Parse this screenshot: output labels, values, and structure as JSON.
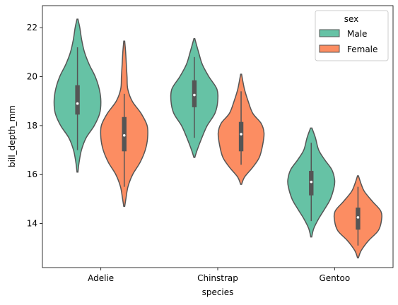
{
  "chart_data": {
    "type": "violin",
    "title": "",
    "xlabel": "species",
    "ylabel": "bill_depth_mm",
    "categories": [
      "Adelie",
      "Chinstrap",
      "Gentoo"
    ],
    "ylim": [
      12.2,
      22.9
    ],
    "yticks": [
      14,
      16,
      18,
      20,
      22
    ],
    "ytick_labels": [
      "14",
      "16",
      "18",
      "20",
      "22"
    ],
    "legend": {
      "title": "sex",
      "placement": "top-right"
    },
    "series": [
      {
        "name": "Male",
        "color": "#66c2a5",
        "violins": [
          {
            "category": "Adelie",
            "q1": 18.45,
            "median": 18.9,
            "q3": 19.65,
            "whisker_low": 17.0,
            "whisker_high": 21.2,
            "profile": [
              [
                16.1,
                0.02
              ],
              [
                16.5,
                0.07
              ],
              [
                17.0,
                0.17
              ],
              [
                17.5,
                0.37
              ],
              [
                18.0,
                0.72
              ],
              [
                18.5,
                0.95
              ],
              [
                19.0,
                1.0
              ],
              [
                19.5,
                0.93
              ],
              [
                20.0,
                0.76
              ],
              [
                20.5,
                0.5
              ],
              [
                21.0,
                0.3
              ],
              [
                21.5,
                0.18
              ],
              [
                22.0,
                0.1
              ],
              [
                22.35,
                0.02
              ]
            ]
          },
          {
            "category": "Chinstrap",
            "q1": 18.75,
            "median": 19.25,
            "q3": 19.85,
            "whisker_low": 17.5,
            "whisker_high": 20.8,
            "profile": [
              [
                16.7,
                0.02
              ],
              [
                17.0,
                0.12
              ],
              [
                17.5,
                0.32
              ],
              [
                18.0,
                0.55
              ],
              [
                18.5,
                0.88
              ],
              [
                19.0,
                1.0
              ],
              [
                19.5,
                0.96
              ],
              [
                20.0,
                0.62
              ],
              [
                20.5,
                0.34
              ],
              [
                21.0,
                0.18
              ],
              [
                21.55,
                0.02
              ]
            ]
          },
          {
            "category": "Gentoo",
            "q1": 15.15,
            "median": 15.7,
            "q3": 16.15,
            "whisker_low": 14.1,
            "whisker_high": 17.3,
            "profile": [
              [
                13.45,
                0.02
              ],
              [
                13.8,
                0.11
              ],
              [
                14.2,
                0.32
              ],
              [
                14.6,
                0.58
              ],
              [
                15.0,
                0.82
              ],
              [
                15.5,
                0.98
              ],
              [
                15.8,
                1.0
              ],
              [
                16.2,
                0.88
              ],
              [
                16.6,
                0.58
              ],
              [
                17.0,
                0.32
              ],
              [
                17.5,
                0.18
              ],
              [
                17.9,
                0.03
              ]
            ]
          }
        ]
      },
      {
        "name": "Female",
        "color": "#fc8d62",
        "violins": [
          {
            "category": "Adelie",
            "q1": 16.95,
            "median": 17.6,
            "q3": 18.35,
            "whisker_low": 15.5,
            "whisker_high": 19.3,
            "profile": [
              [
                14.7,
                0.02
              ],
              [
                15.0,
                0.07
              ],
              [
                15.5,
                0.16
              ],
              [
                16.0,
                0.36
              ],
              [
                16.5,
                0.68
              ],
              [
                17.0,
                0.9
              ],
              [
                17.5,
                1.0
              ],
              [
                18.0,
                0.98
              ],
              [
                18.5,
                0.72
              ],
              [
                19.0,
                0.34
              ],
              [
                19.5,
                0.15
              ],
              [
                20.0,
                0.12
              ],
              [
                20.5,
                0.09
              ],
              [
                21.0,
                0.06
              ],
              [
                21.45,
                0.02
              ]
            ]
          },
          {
            "category": "Chinstrap",
            "q1": 16.95,
            "median": 17.65,
            "q3": 18.15,
            "whisker_low": 16.4,
            "whisker_high": 19.4,
            "profile": [
              [
                15.6,
                0.02
              ],
              [
                15.9,
                0.15
              ],
              [
                16.3,
                0.5
              ],
              [
                16.7,
                0.78
              ],
              [
                17.2,
                0.92
              ],
              [
                17.7,
                0.98
              ],
              [
                18.1,
                0.85
              ],
              [
                18.5,
                0.5
              ],
              [
                19.0,
                0.3
              ],
              [
                19.5,
                0.14
              ],
              [
                20.1,
                0.02
              ]
            ]
          },
          {
            "category": "Gentoo",
            "q1": 13.75,
            "median": 14.25,
            "q3": 14.65,
            "whisker_low": 13.1,
            "whisker_high": 15.5,
            "profile": [
              [
                12.6,
                0.02
              ],
              [
                12.9,
                0.14
              ],
              [
                13.3,
                0.45
              ],
              [
                13.7,
                0.86
              ],
              [
                14.1,
                1.0
              ],
              [
                14.5,
                0.98
              ],
              [
                14.9,
                0.62
              ],
              [
                15.3,
                0.28
              ],
              [
                15.6,
                0.14
              ],
              [
                15.95,
                0.02
              ]
            ]
          }
        ]
      }
    ]
  },
  "style": {
    "edge_color": "#555555",
    "box_color": "#555555",
    "median_color": "#ffffff"
  }
}
